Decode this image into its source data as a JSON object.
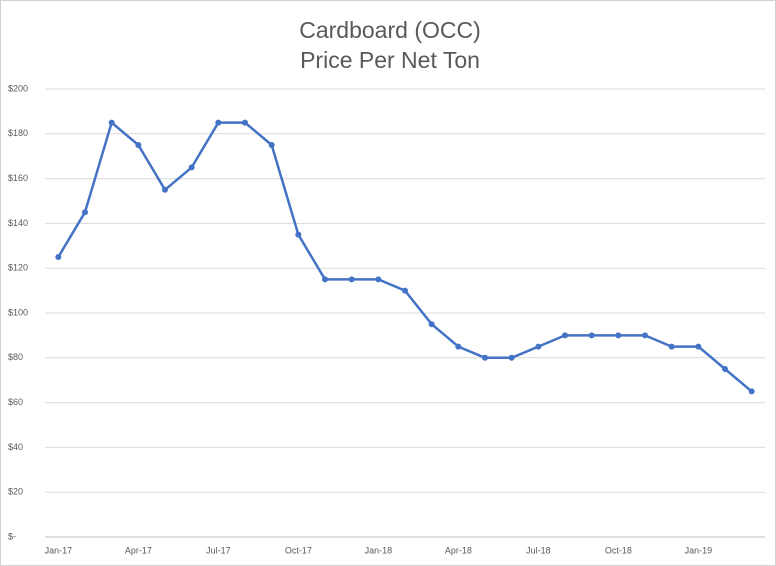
{
  "chart_data": {
    "type": "line",
    "title": [
      "Cardboard (OCC)",
      "Price Per Net Ton"
    ],
    "categories": [
      "Jan-17",
      null,
      null,
      "Apr-17",
      null,
      null,
      "Jul-17",
      null,
      null,
      "Oct-17",
      null,
      null,
      "Jan-18",
      null,
      null,
      "Apr-18",
      null,
      null,
      "Jul-18",
      null,
      null,
      "Oct-18",
      null,
      null,
      "Jan-19",
      null,
      null
    ],
    "series": [
      {
        "name": "Price Per Net Ton",
        "color": "#4472c4",
        "values": [
          125,
          145,
          185,
          175,
          155,
          165,
          185,
          185,
          175,
          135,
          115,
          115,
          115,
          110,
          95,
          85,
          80,
          80,
          85,
          90,
          90,
          90,
          90,
          85,
          85,
          75,
          65
        ]
      }
    ],
    "ylim": [
      0,
      200
    ],
    "yticks": [
      {
        "value": 0,
        "label": "$-"
      },
      {
        "value": 20,
        "label": "$20"
      },
      {
        "value": 40,
        "label": "$40"
      },
      {
        "value": 60,
        "label": "$60"
      },
      {
        "value": 80,
        "label": "$80"
      },
      {
        "value": 100,
        "label": "$100"
      },
      {
        "value": 120,
        "label": "$120"
      },
      {
        "value": 140,
        "label": "$140"
      },
      {
        "value": 160,
        "label": "$160"
      },
      {
        "value": 180,
        "label": "$180"
      },
      {
        "value": 200,
        "label": "$200"
      }
    ],
    "grid": true
  }
}
